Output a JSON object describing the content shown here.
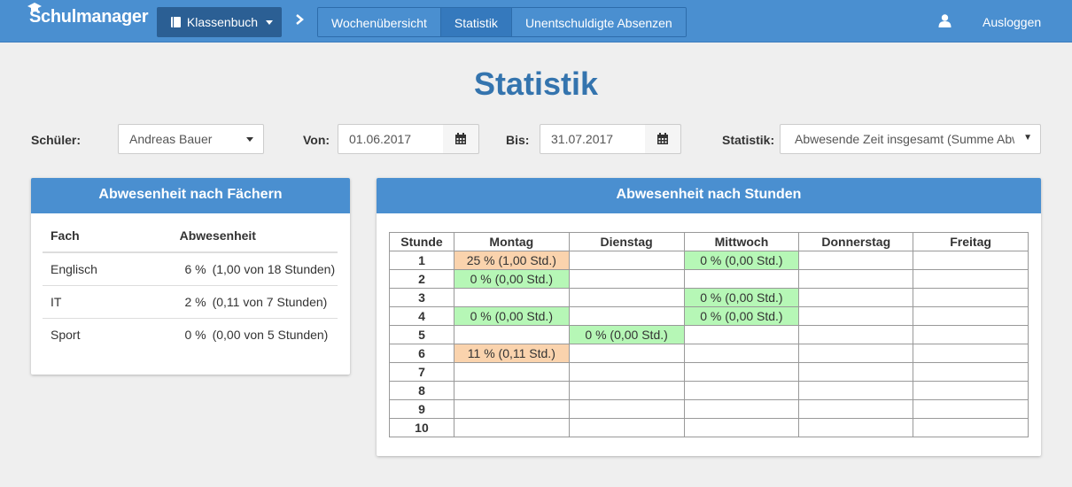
{
  "nav": {
    "brand": "Schulmanager",
    "klassenbuch_label": "Klassenbuch",
    "tabs": [
      {
        "label": "Wochenübersicht",
        "active": false
      },
      {
        "label": "Statistik",
        "active": true
      },
      {
        "label": "Unentschuldigte Absenzen",
        "active": false
      }
    ],
    "user_icon": "user-icon",
    "logout_label": "Ausloggen"
  },
  "page_title": "Statistik",
  "filters": {
    "student_label": "Schüler:",
    "student_value": "Andreas Bauer",
    "from_label": "Von:",
    "from_value": "01.06.2017",
    "to_label": "Bis:",
    "to_value": "31.07.2017",
    "stat_label": "Statistik:",
    "stat_value": "Abwesende Zeit insgesamt (Summe Abwesenheit)"
  },
  "subjects_panel": {
    "title": "Abwesenheit nach Fächern",
    "col_subject": "Fach",
    "col_absence": "Abwesenheit",
    "rows": [
      {
        "subject": "Englisch",
        "percent": "6 %",
        "detail": "(1,00 von 18 Stunden)"
      },
      {
        "subject": "IT",
        "percent": "2 %",
        "detail": "(0,11 von 7 Stunden)"
      },
      {
        "subject": "Sport",
        "percent": "0 %",
        "detail": "(0,00 von 5 Stunden)"
      }
    ]
  },
  "hours_panel": {
    "title": "Abwesenheit nach Stunden",
    "headers": [
      "Stunde",
      "Montag",
      "Dienstag",
      "Mittwoch",
      "Donnerstag",
      "Freitag"
    ],
    "rows": [
      {
        "hour": "1",
        "cells": [
          {
            "text": "25 % (1,00 Std.)",
            "status": "orange"
          },
          {
            "text": "",
            "status": ""
          },
          {
            "text": "0 % (0,00 Std.)",
            "status": "green"
          },
          {
            "text": "",
            "status": ""
          },
          {
            "text": "",
            "status": ""
          }
        ]
      },
      {
        "hour": "2",
        "cells": [
          {
            "text": "0 % (0,00 Std.)",
            "status": "green"
          },
          {
            "text": "",
            "status": ""
          },
          {
            "text": "",
            "status": ""
          },
          {
            "text": "",
            "status": ""
          },
          {
            "text": "",
            "status": ""
          }
        ]
      },
      {
        "hour": "3",
        "cells": [
          {
            "text": "",
            "status": ""
          },
          {
            "text": "",
            "status": ""
          },
          {
            "text": "0 % (0,00 Std.)",
            "status": "green"
          },
          {
            "text": "",
            "status": ""
          },
          {
            "text": "",
            "status": ""
          }
        ]
      },
      {
        "hour": "4",
        "cells": [
          {
            "text": "0 % (0,00 Std.)",
            "status": "green"
          },
          {
            "text": "",
            "status": ""
          },
          {
            "text": "0 % (0,00 Std.)",
            "status": "green"
          },
          {
            "text": "",
            "status": ""
          },
          {
            "text": "",
            "status": ""
          }
        ]
      },
      {
        "hour": "5",
        "cells": [
          {
            "text": "",
            "status": ""
          },
          {
            "text": "0 % (0,00 Std.)",
            "status": "green"
          },
          {
            "text": "",
            "status": ""
          },
          {
            "text": "",
            "status": ""
          },
          {
            "text": "",
            "status": ""
          }
        ]
      },
      {
        "hour": "6",
        "cells": [
          {
            "text": "11 % (0,11 Std.)",
            "status": "orange"
          },
          {
            "text": "",
            "status": ""
          },
          {
            "text": "",
            "status": ""
          },
          {
            "text": "",
            "status": ""
          },
          {
            "text": "",
            "status": ""
          }
        ]
      },
      {
        "hour": "7",
        "cells": [
          {
            "text": "",
            "status": ""
          },
          {
            "text": "",
            "status": ""
          },
          {
            "text": "",
            "status": ""
          },
          {
            "text": "",
            "status": ""
          },
          {
            "text": "",
            "status": ""
          }
        ]
      },
      {
        "hour": "8",
        "cells": [
          {
            "text": "",
            "status": ""
          },
          {
            "text": "",
            "status": ""
          },
          {
            "text": "",
            "status": ""
          },
          {
            "text": "",
            "status": ""
          },
          {
            "text": "",
            "status": ""
          }
        ]
      },
      {
        "hour": "9",
        "cells": [
          {
            "text": "",
            "status": ""
          },
          {
            "text": "",
            "status": ""
          },
          {
            "text": "",
            "status": ""
          },
          {
            "text": "",
            "status": ""
          },
          {
            "text": "",
            "status": ""
          }
        ]
      },
      {
        "hour": "10",
        "cells": [
          {
            "text": "",
            "status": ""
          },
          {
            "text": "",
            "status": ""
          },
          {
            "text": "",
            "status": ""
          },
          {
            "text": "",
            "status": ""
          },
          {
            "text": "",
            "status": ""
          }
        ]
      }
    ]
  },
  "colors": {
    "navbar": "#4a8fd0",
    "title": "#3474ae",
    "low_absence": "#b6f7b6",
    "high_absence": "#fad3ad"
  }
}
